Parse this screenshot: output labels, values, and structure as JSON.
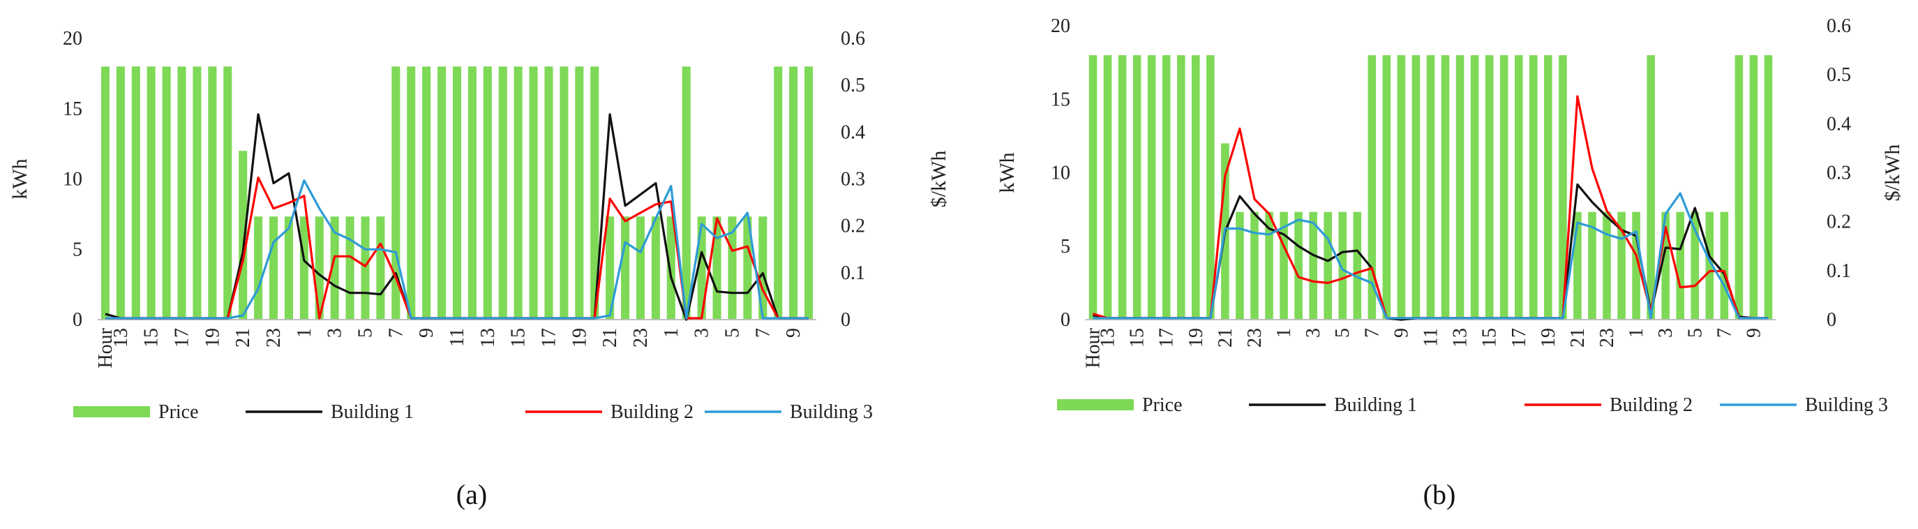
{
  "chart_data": [
    {
      "type": "bar+line",
      "panel_label": "(a)",
      "caption_letter": "a",
      "ylabel_left": "kWh",
      "ylabel_right": "$/kWh",
      "ylim_left": [
        0,
        20
      ],
      "ylim_right": [
        0,
        0.6
      ],
      "yticks_left": [
        "0",
        "5",
        "10",
        "15",
        "20"
      ],
      "yticks_right": [
        "0",
        "0.1",
        "0.2",
        "0.3",
        "0.4",
        "0.5",
        "0.6"
      ],
      "hours": [
        12,
        13,
        14,
        15,
        16,
        17,
        18,
        19,
        20,
        21,
        22,
        23,
        0,
        1,
        2,
        3,
        4,
        5,
        6,
        7,
        8,
        9,
        10,
        11,
        12,
        13,
        14,
        15,
        16,
        17,
        18,
        19,
        20,
        21,
        22,
        23,
        0,
        1,
        2,
        3,
        4,
        5,
        6,
        7,
        8,
        9,
        10
      ],
      "x_tick_labels": [
        "Hour",
        "13",
        "15",
        "17",
        "19",
        "21",
        "23",
        "1",
        "3",
        "5",
        "7",
        "9",
        "11",
        "13",
        "15",
        "17",
        "19",
        "21",
        "23",
        "1",
        "3",
        "5",
        "7",
        "9"
      ],
      "x_tick_index": [
        0,
        1,
        3,
        5,
        7,
        9,
        11,
        13,
        15,
        17,
        19,
        21,
        23,
        25,
        27,
        29,
        31,
        33,
        35,
        37,
        39,
        41,
        43,
        45
      ],
      "series": [
        {
          "name": "Price",
          "kind": "bar",
          "axis": "right",
          "color": "#7ED957",
          "values": [
            0.54,
            0.54,
            0.54,
            0.54,
            0.54,
            0.54,
            0.54,
            0.54,
            0.54,
            0.36,
            0.22,
            0.22,
            0.22,
            0.22,
            0.22,
            0.22,
            0.22,
            0.22,
            0.22,
            0.54,
            0.54,
            0.54,
            0.54,
            0.54,
            0.54,
            0.54,
            0.54,
            0.54,
            0.54,
            0.54,
            0.54,
            0.54,
            0.54,
            0.22,
            0.22,
            0.22,
            0.22,
            0.22,
            0.54,
            0.22,
            0.22,
            0.22,
            0.22,
            0.22,
            0.54,
            0.54,
            0.54
          ]
        },
        {
          "name": "Building 1",
          "kind": "line",
          "axis": "left",
          "color": "#111111",
          "values": [
            0.4,
            0.1,
            0.1,
            0.1,
            0.1,
            0.1,
            0.1,
            0.1,
            0.1,
            4.8,
            14.6,
            9.7,
            10.4,
            4.2,
            3.2,
            2.4,
            1.9,
            1.9,
            1.8,
            3.3,
            0.1,
            0.1,
            0.1,
            0.1,
            0.1,
            0.1,
            0.1,
            0.1,
            0.1,
            0.1,
            0.1,
            0.1,
            0.1,
            14.6,
            8.1,
            8.9,
            9.7,
            3.0,
            0.0,
            4.8,
            2.0,
            1.9,
            1.9,
            3.3,
            0.1,
            0.1,
            0.1
          ]
        },
        {
          "name": "Building 2",
          "kind": "line",
          "axis": "left",
          "color": "#FF0000",
          "values": [
            0.1,
            0.1,
            0.1,
            0.1,
            0.1,
            0.1,
            0.1,
            0.1,
            0.1,
            4.2,
            10.1,
            7.9,
            8.3,
            8.8,
            0.1,
            4.5,
            4.5,
            3.8,
            5.4,
            3.0,
            0.1,
            0.1,
            0.1,
            0.1,
            0.1,
            0.1,
            0.1,
            0.1,
            0.1,
            0.1,
            0.1,
            0.1,
            0.1,
            8.6,
            7.0,
            7.6,
            8.2,
            8.4,
            0.1,
            0.1,
            7.2,
            4.9,
            5.2,
            2.1,
            0.1,
            0.1,
            0.1
          ]
        },
        {
          "name": "Building 3",
          "kind": "line",
          "axis": "left",
          "color": "#2E9BD6",
          "values": [
            0.1,
            0.1,
            0.1,
            0.1,
            0.1,
            0.1,
            0.1,
            0.1,
            0.1,
            0.3,
            2.2,
            5.5,
            6.5,
            9.9,
            7.9,
            6.2,
            5.7,
            5.0,
            5.0,
            4.8,
            0.1,
            0.1,
            0.1,
            0.1,
            0.1,
            0.1,
            0.1,
            0.1,
            0.1,
            0.1,
            0.1,
            0.1,
            0.1,
            0.3,
            5.5,
            4.8,
            7.2,
            9.5,
            0.1,
            6.8,
            5.8,
            6.2,
            7.6,
            0.1,
            0.1,
            0.1,
            0.1
          ]
        }
      ]
    },
    {
      "type": "bar+line",
      "panel_label": "(b)",
      "caption_letter": "b",
      "ylabel_left": "kWh",
      "ylabel_right": "$/kWh",
      "ylim_left": [
        0,
        20
      ],
      "ylim_right": [
        0,
        0.6
      ],
      "yticks_left": [
        "0",
        "5",
        "10",
        "15",
        "20"
      ],
      "yticks_right": [
        "0",
        "0.1",
        "0.2",
        "0.3",
        "0.4",
        "0.5",
        "0.6"
      ],
      "hours": [
        12,
        13,
        14,
        15,
        16,
        17,
        18,
        19,
        20,
        21,
        22,
        23,
        0,
        1,
        2,
        3,
        4,
        5,
        6,
        7,
        8,
        9,
        10,
        11,
        12,
        13,
        14,
        15,
        16,
        17,
        18,
        19,
        20,
        21,
        22,
        23,
        0,
        1,
        2,
        3,
        4,
        5,
        6,
        7,
        8,
        9,
        10
      ],
      "x_tick_labels": [
        "Hour",
        "13",
        "15",
        "17",
        "19",
        "21",
        "23",
        "1",
        "3",
        "5",
        "7",
        "9",
        "11",
        "13",
        "15",
        "17",
        "19",
        "21",
        "23",
        "1",
        "3",
        "5",
        "7",
        "9"
      ],
      "x_tick_index": [
        0,
        1,
        3,
        5,
        7,
        9,
        11,
        13,
        15,
        17,
        19,
        21,
        23,
        25,
        27,
        29,
        31,
        33,
        35,
        37,
        39,
        41,
        43,
        45
      ],
      "series": [
        {
          "name": "Price",
          "kind": "bar",
          "axis": "right",
          "color": "#7ED957",
          "values": [
            0.54,
            0.54,
            0.54,
            0.54,
            0.54,
            0.54,
            0.54,
            0.54,
            0.54,
            0.36,
            0.22,
            0.22,
            0.22,
            0.22,
            0.22,
            0.22,
            0.22,
            0.22,
            0.22,
            0.54,
            0.54,
            0.54,
            0.54,
            0.54,
            0.54,
            0.54,
            0.54,
            0.54,
            0.54,
            0.54,
            0.54,
            0.54,
            0.54,
            0.22,
            0.22,
            0.22,
            0.22,
            0.22,
            0.54,
            0.22,
            0.22,
            0.22,
            0.22,
            0.22,
            0.54,
            0.54,
            0.54
          ]
        },
        {
          "name": "Building 1",
          "kind": "line",
          "axis": "left",
          "color": "#111111",
          "values": [
            0.3,
            0.1,
            0.1,
            0.1,
            0.1,
            0.1,
            0.1,
            0.1,
            0.1,
            6.0,
            8.4,
            7.2,
            6.2,
            5.8,
            5.0,
            4.4,
            4.0,
            4.6,
            4.7,
            3.5,
            0.1,
            0.0,
            0.1,
            0.1,
            0.1,
            0.1,
            0.1,
            0.1,
            0.1,
            0.1,
            0.1,
            0.1,
            0.1,
            9.2,
            8.0,
            7.0,
            6.1,
            5.7,
            0.5,
            4.9,
            4.8,
            7.6,
            4.3,
            3.1,
            0.2,
            0.1,
            0.1
          ]
        },
        {
          "name": "Building 2",
          "kind": "line",
          "axis": "left",
          "color": "#FF0000",
          "values": [
            0.4,
            0.1,
            0.1,
            0.1,
            0.1,
            0.1,
            0.1,
            0.1,
            0.1,
            9.8,
            13.0,
            8.2,
            7.2,
            5.0,
            2.9,
            2.6,
            2.5,
            2.8,
            3.2,
            3.5,
            0.1,
            0.1,
            0.1,
            0.1,
            0.1,
            0.1,
            0.1,
            0.1,
            0.1,
            0.1,
            0.1,
            0.1,
            0.1,
            15.2,
            10.3,
            7.4,
            6.1,
            4.4,
            0.5,
            6.3,
            2.2,
            2.3,
            3.3,
            3.3,
            0.1,
            0.1,
            0.1
          ]
        },
        {
          "name": "Building 3",
          "kind": "line",
          "axis": "left",
          "color": "#2E9BD6",
          "values": [
            0.1,
            0.1,
            0.1,
            0.1,
            0.1,
            0.1,
            0.1,
            0.1,
            0.1,
            6.2,
            6.2,
            5.9,
            5.8,
            6.3,
            6.8,
            6.6,
            5.5,
            3.4,
            2.9,
            2.5,
            0.1,
            0.1,
            0.1,
            0.1,
            0.1,
            0.1,
            0.1,
            0.1,
            0.1,
            0.1,
            0.1,
            0.1,
            0.1,
            6.6,
            6.3,
            5.8,
            5.5,
            6.0,
            0.1,
            7.2,
            8.6,
            6.1,
            4.0,
            2.3,
            0.1,
            0.1,
            0.1
          ]
        }
      ]
    }
  ]
}
